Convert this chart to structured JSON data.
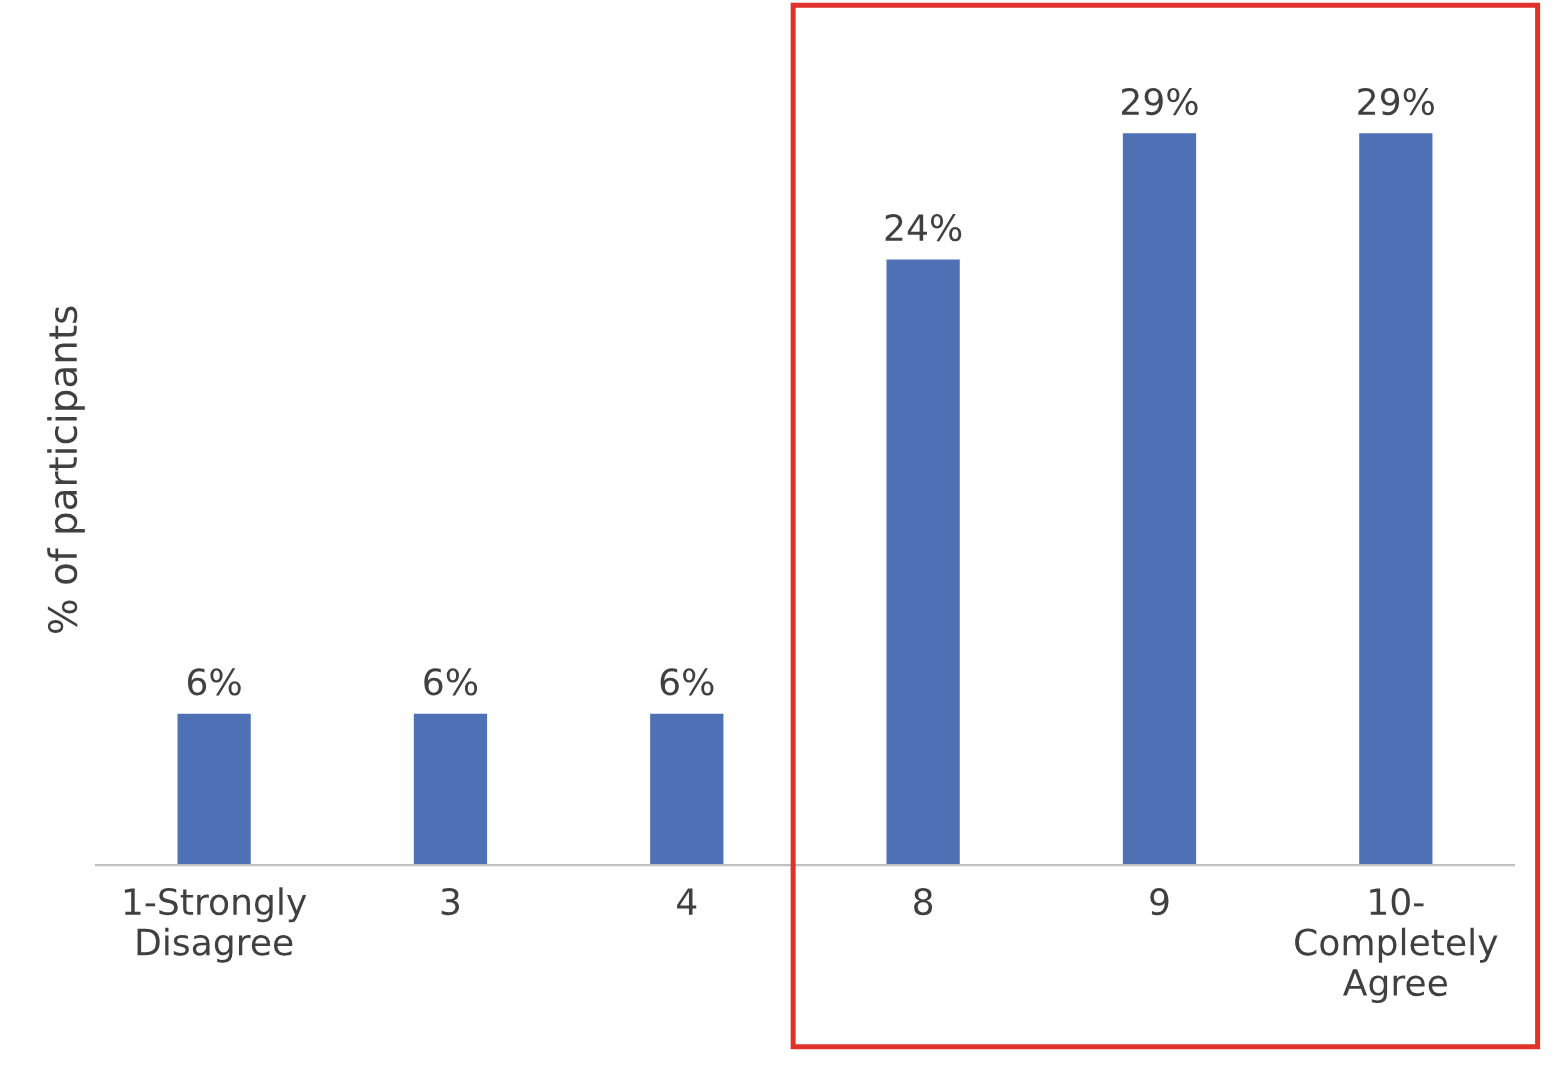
{
  "chart_data": {
    "type": "bar",
    "ylabel": "% of participants",
    "categories": [
      "1-Strongly\nDisagree",
      "3",
      "4",
      "8",
      "9",
      "10-\nCompletely\nAgree"
    ],
    "values": [
      6,
      6,
      6,
      24,
      29,
      29
    ],
    "value_labels": [
      "6%",
      "6%",
      "6%",
      "24%",
      "29%",
      "29%"
    ],
    "color": "#4e71b5",
    "grid": false,
    "legend": false
  }
}
